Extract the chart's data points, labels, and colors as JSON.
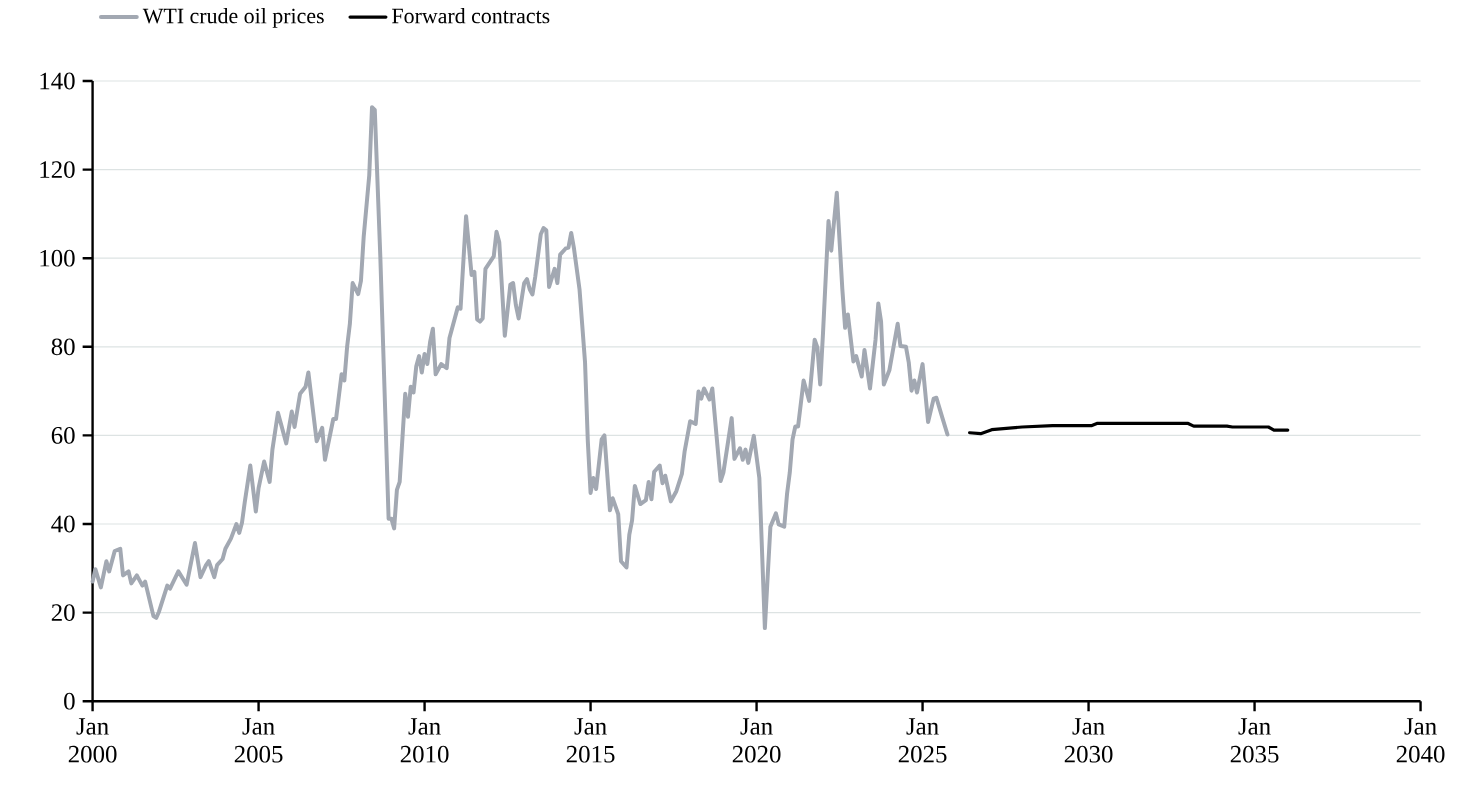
{
  "chart_data": {
    "type": "line",
    "x": [
      "2000-01",
      "2000-02",
      "2000-04",
      "2000-06",
      "2000-07",
      "2000-09",
      "2000-11",
      "2000-12",
      "2001-02",
      "2001-03",
      "2001-05",
      "2001-07",
      "2001-08",
      "2001-11",
      "2001-12",
      "2002-01",
      "2002-04",
      "2002-05",
      "2002-08",
      "2002-11",
      "2003-02",
      "2003-04",
      "2003-06",
      "2003-07",
      "2003-09",
      "2003-10",
      "2003-12",
      "2004-01",
      "2004-03",
      "2004-05",
      "2004-06",
      "2004-07",
      "2004-08",
      "2004-10",
      "2004-12",
      "2005-01",
      "2005-03",
      "2005-05",
      "2005-06",
      "2005-08",
      "2005-11",
      "2006-01",
      "2006-02",
      "2006-04",
      "2006-06",
      "2006-07",
      "2006-10",
      "2006-12",
      "2007-01",
      "2007-04",
      "2007-05",
      "2007-07",
      "2007-08",
      "2007-09",
      "2007-10",
      "2007-11",
      "2008-01",
      "2008-02",
      "2008-03",
      "2008-05",
      "2008-06",
      "2008-07",
      "2008-09",
      "2008-12",
      "2009-01",
      "2009-02",
      "2009-03",
      "2009-04",
      "2009-06",
      "2009-07",
      "2009-08",
      "2009-09",
      "2009-10",
      "2009-11",
      "2009-12",
      "2010-01",
      "2010-02",
      "2010-03",
      "2010-04",
      "2010-05",
      "2010-07",
      "2010-09",
      "2010-10",
      "2011-01",
      "2011-02",
      "2011-04",
      "2011-06",
      "2011-07",
      "2011-08",
      "2011-09",
      "2011-10",
      "2011-11",
      "2012-02",
      "2012-03",
      "2012-04",
      "2012-06",
      "2012-08",
      "2012-09",
      "2012-10",
      "2012-11",
      "2013-01",
      "2013-02",
      "2013-03",
      "2013-04",
      "2013-05",
      "2013-07",
      "2013-08",
      "2013-09",
      "2013-10",
      "2013-12",
      "2014-01",
      "2014-02",
      "2014-04",
      "2014-05",
      "2014-06",
      "2014-07",
      "2014-09",
      "2014-10",
      "2014-11",
      "2014-12",
      "2015-01",
      "2015-02",
      "2015-03",
      "2015-05",
      "2015-06",
      "2015-08",
      "2015-09",
      "2015-11",
      "2015-12",
      "2016-02",
      "2016-03",
      "2016-04",
      "2016-05",
      "2016-07",
      "2016-09",
      "2016-10",
      "2016-11",
      "2016-12",
      "2017-02",
      "2017-03",
      "2017-04",
      "2017-06",
      "2017-08",
      "2017-10",
      "2017-11",
      "2018-01",
      "2018-03",
      "2018-04",
      "2018-05",
      "2018-06",
      "2018-08",
      "2018-09",
      "2018-12",
      "2019-01",
      "2019-04",
      "2019-05",
      "2019-07",
      "2019-08",
      "2019-09",
      "2019-10",
      "2019-12",
      "2020-02",
      "2020-04",
      "2020-05",
      "2020-06",
      "2020-08",
      "2020-09",
      "2020-11",
      "2020-12",
      "2021-01",
      "2021-02",
      "2021-03",
      "2021-04",
      "2021-06",
      "2021-08",
      "2021-10",
      "2021-11",
      "2021-12",
      "2022-01",
      "2022-03",
      "2022-04",
      "2022-06",
      "2022-08",
      "2022-09",
      "2022-10",
      "2022-12",
      "2023-01",
      "2023-03",
      "2023-04",
      "2023-06",
      "2023-07",
      "2023-08",
      "2023-09",
      "2023-10",
      "2023-11",
      "2024-01",
      "2024-04",
      "2024-05",
      "2024-07",
      "2024-08",
      "2024-09",
      "2024-10",
      "2024-11",
      "2025-01",
      "2025-03",
      "2025-05",
      "2025-06",
      "2025-08",
      "2025-10"
    ],
    "series": [
      {
        "name": "WTI crude oil prices",
        "color": "#a2a8b2",
        "values": [
          27.0,
          29.8,
          25.7,
          31.6,
          29.3,
          33.9,
          34.4,
          28.4,
          29.3,
          26.6,
          28.4,
          26.1,
          27.0,
          19.2,
          18.8,
          20.2,
          26.1,
          25.4,
          29.3,
          26.3,
          35.7,
          28.0,
          30.7,
          31.6,
          28.0,
          30.7,
          32.1,
          34.4,
          36.7,
          40.0,
          38.0,
          40.3,
          44.9,
          53.2,
          42.8,
          48.1,
          54.1,
          49.5,
          56.8,
          65.1,
          58.2,
          65.4,
          61.9,
          69.4,
          71.0,
          74.2,
          58.7,
          61.7,
          54.5,
          63.7,
          63.7,
          73.8,
          72.4,
          80.0,
          85.2,
          94.4,
          91.9,
          94.9,
          104.9,
          118.7,
          134.1,
          133.5,
          100.4,
          41.2,
          41.2,
          39.0,
          47.7,
          49.5,
          69.4,
          64.2,
          71.0,
          69.7,
          75.6,
          77.9,
          74.2,
          78.4,
          76.1,
          81.1,
          84.1,
          73.8,
          76.1,
          75.2,
          82.0,
          88.9,
          88.6,
          109.5,
          96.2,
          96.9,
          86.2,
          85.7,
          86.4,
          97.6,
          100.4,
          106.0,
          103.6,
          82.5,
          94.0,
          94.4,
          89.4,
          86.4,
          94.4,
          95.3,
          93.0,
          91.8,
          95.8,
          105.4,
          106.8,
          106.3,
          93.5,
          97.6,
          94.4,
          100.8,
          102.2,
          102.4,
          105.7,
          102.2,
          93.0,
          84.8,
          76.5,
          58.7,
          47.0,
          50.4,
          47.9,
          59.1,
          60.0,
          43.1,
          45.8,
          42.2,
          31.6,
          30.2,
          37.6,
          40.8,
          48.6,
          44.5,
          45.4,
          49.5,
          45.6,
          51.8,
          53.2,
          49.2,
          50.9,
          45.1,
          47.4,
          51.3,
          56.4,
          63.2,
          62.6,
          69.9,
          68.3,
          70.6,
          68.1,
          70.6,
          49.7,
          51.6,
          63.9,
          54.7,
          57.1,
          54.5,
          56.8,
          53.8,
          59.9,
          50.4,
          16.5,
          28.0,
          39.4,
          42.4,
          39.9,
          39.4,
          46.7,
          51.6,
          59.1,
          62.0,
          62.0,
          72.4,
          67.8,
          81.6,
          79.8,
          71.5,
          82.9,
          108.4,
          101.7,
          114.8,
          93.0,
          84.3,
          87.3,
          76.7,
          77.9,
          73.3,
          79.3,
          70.6,
          76.1,
          81.6,
          89.8,
          85.7,
          71.5,
          74.7,
          85.2,
          80.2,
          80.0,
          76.5,
          70.1,
          72.4,
          69.7,
          76.1,
          63.0,
          68.3,
          68.5,
          64.3,
          60.2
        ]
      },
      {
        "name": "Forward contracts",
        "color": "#000000",
        "x": [
          "2026-06",
          "2026-10",
          "2027-02",
          "2028-01",
          "2028-12",
          "2030-02",
          "2030-04",
          "2033-01",
          "2033-03",
          "2034-03",
          "2034-05",
          "2035-06",
          "2035-08",
          "2036-01"
        ],
        "values": [
          60.6,
          60.4,
          61.3,
          61.9,
          62.2,
          62.2,
          62.7,
          62.7,
          62.1,
          62.1,
          61.9,
          61.9,
          61.2,
          61.2
        ]
      }
    ],
    "xlim": [
      "2000-01",
      "2040-01"
    ],
    "xticks": [
      {
        "value": "2000-01",
        "label": "Jan 2000"
      },
      {
        "value": "2005-01",
        "label": "Jan 2005"
      },
      {
        "value": "2010-01",
        "label": "Jan 2010"
      },
      {
        "value": "2015-01",
        "label": "Jan 2015"
      },
      {
        "value": "2020-01",
        "label": "Jan 2020"
      },
      {
        "value": "2025-01",
        "label": "Jan 2025"
      },
      {
        "value": "2030-01",
        "label": "Jan 2030"
      },
      {
        "value": "2035-01",
        "label": "Jan 2035"
      },
      {
        "value": "2040-01",
        "label": "Jan 2040"
      }
    ],
    "ylim": [
      0,
      140
    ],
    "yticks": [
      0,
      20,
      40,
      60,
      80,
      100,
      120,
      140
    ],
    "grid": "y",
    "legend": "top left"
  }
}
